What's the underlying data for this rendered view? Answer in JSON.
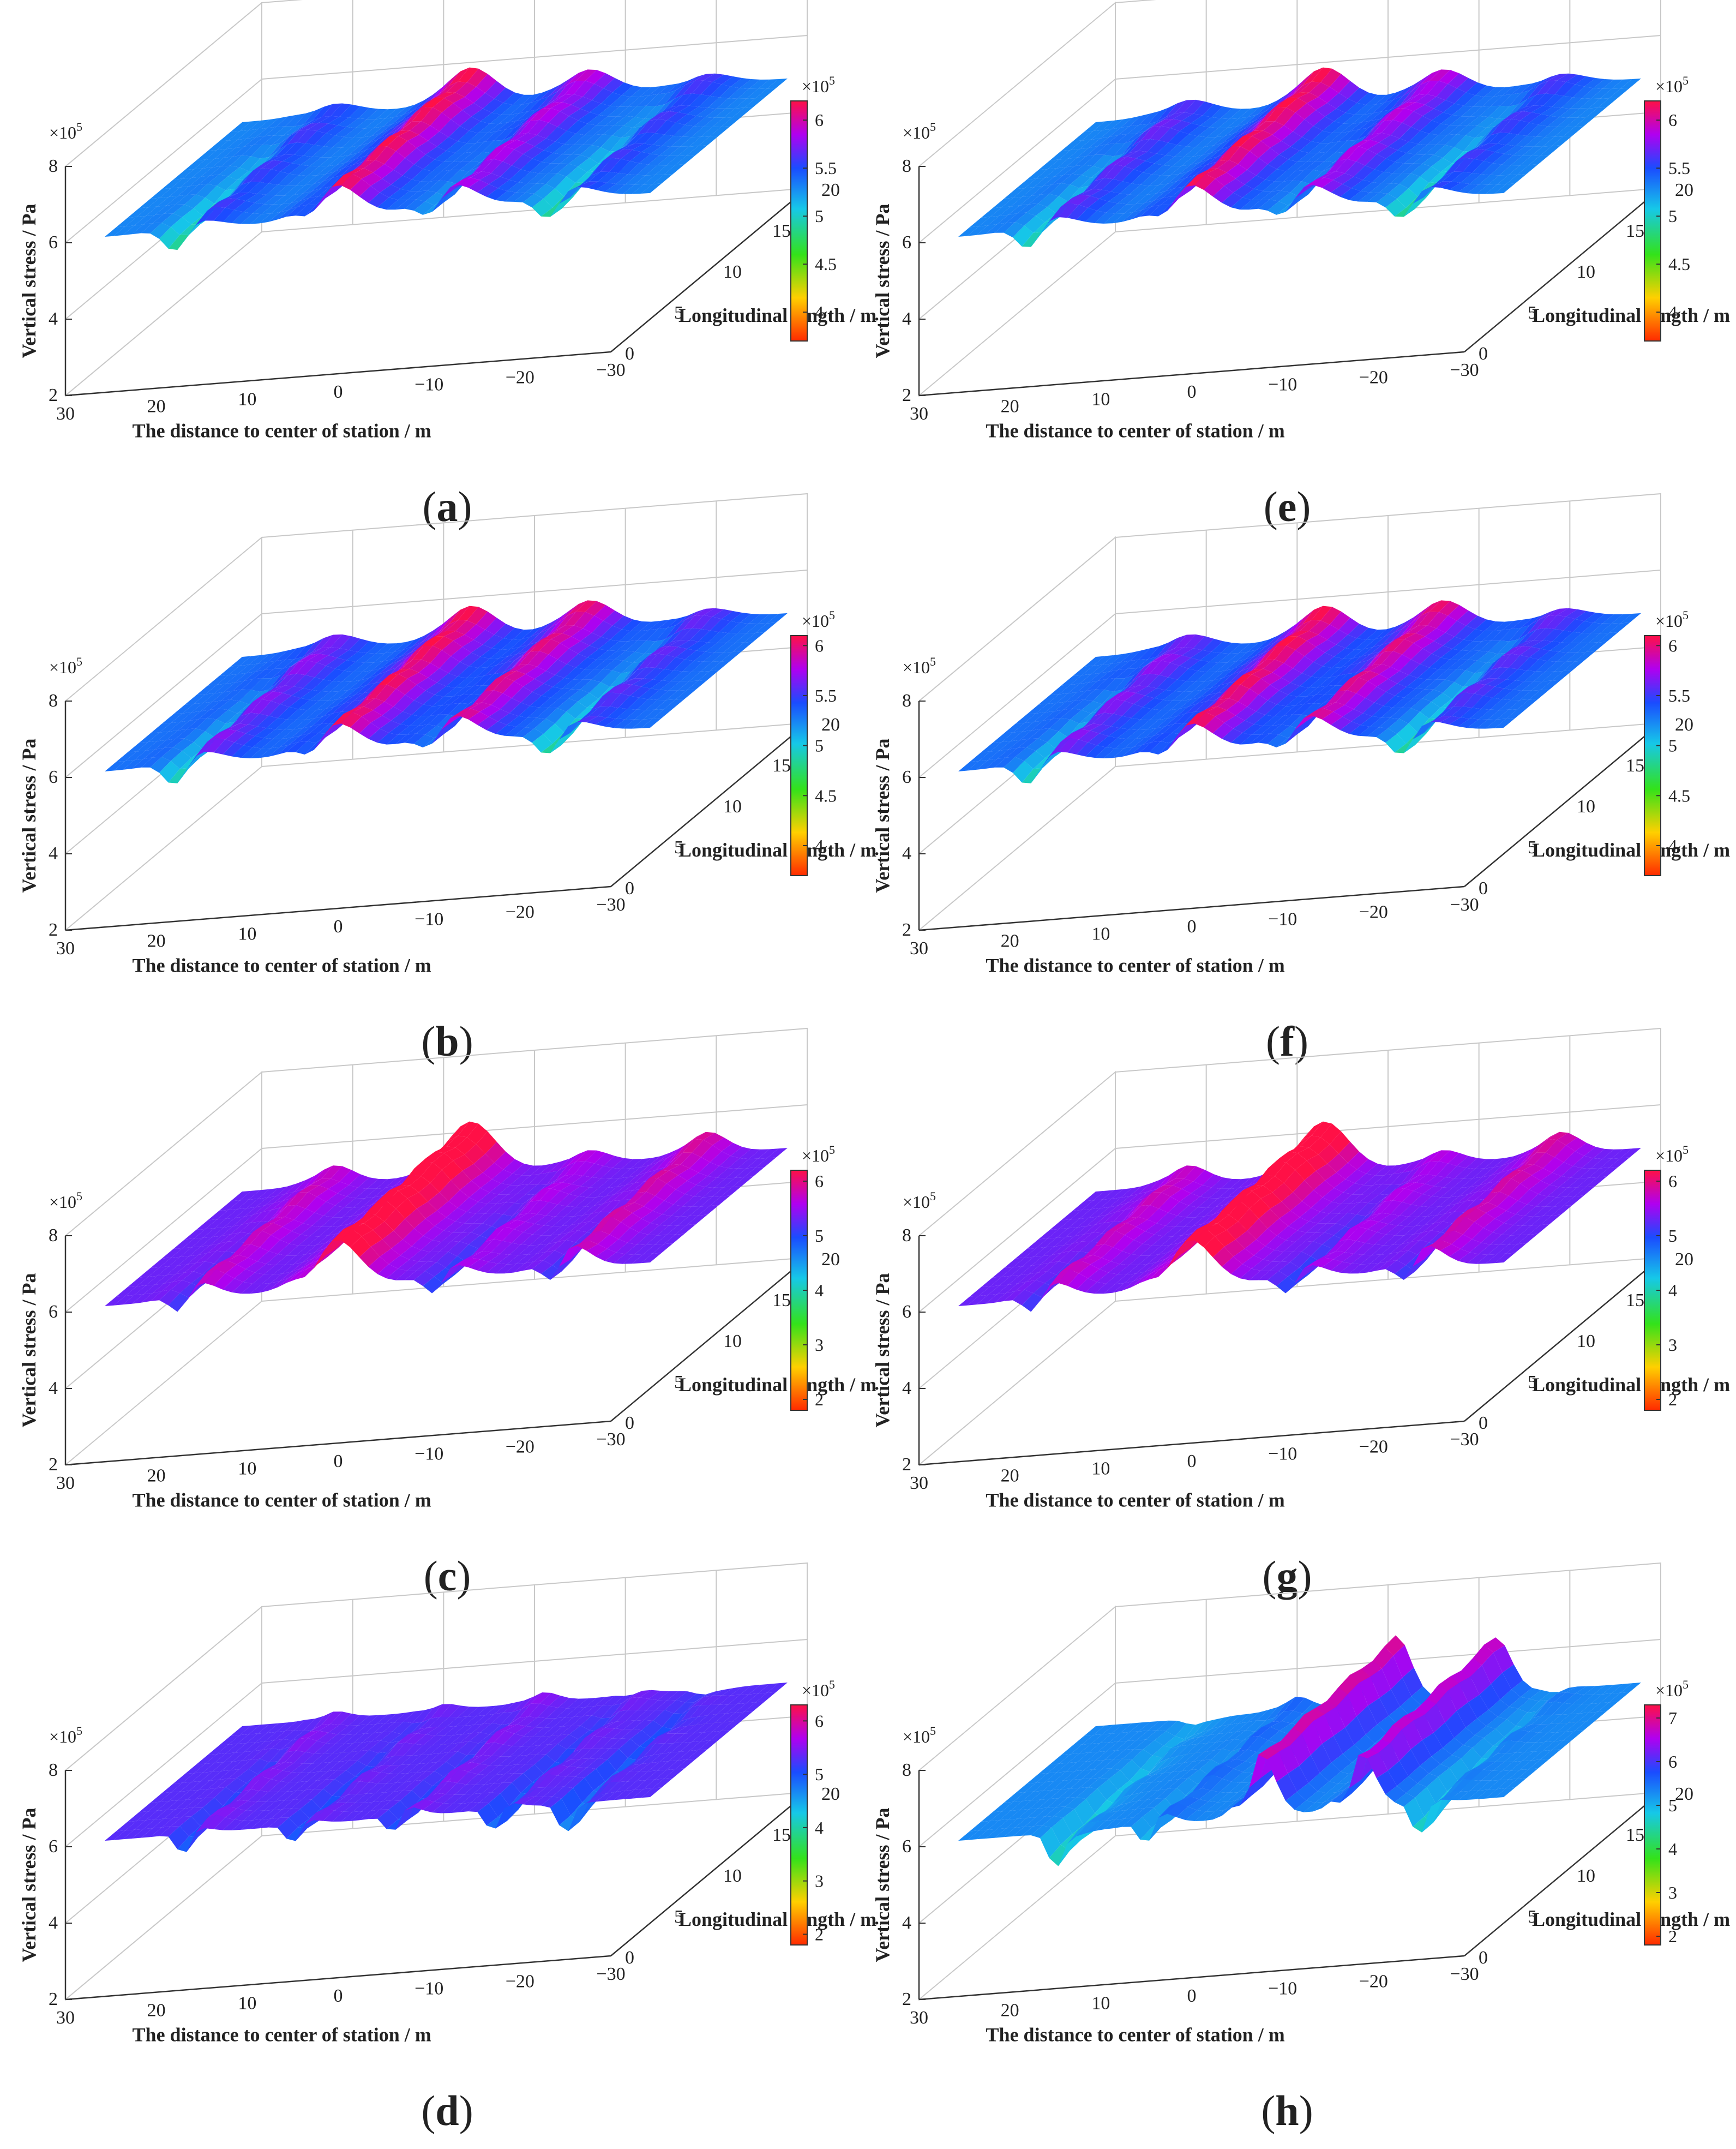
{
  "figure": {
    "panels": [
      {
        "id": "a",
        "caption": "(a)",
        "caption_letter": "a"
      },
      {
        "id": "b",
        "caption": "(b)",
        "caption_letter": "b"
      },
      {
        "id": "c",
        "caption": "(c)",
        "caption_letter": "c"
      },
      {
        "id": "d",
        "caption": "(d)",
        "caption_letter": "d"
      },
      {
        "id": "e",
        "caption": "(e)",
        "caption_letter": "e"
      },
      {
        "id": "f",
        "caption": "(f)",
        "caption_letter": "f"
      },
      {
        "id": "g",
        "caption": "(g)",
        "caption_letter": "g"
      },
      {
        "id": "h",
        "caption": "(h)",
        "caption_letter": "h"
      }
    ]
  },
  "chart_data": [
    {
      "panel": "a",
      "type": "surface",
      "zlabel": "Vertical stress / Pa",
      "xlabel": "The distance to center of station / m",
      "ylabel": "Longitudinal length / m",
      "zscale": "×10^5",
      "zticks": [
        "2",
        "4",
        "6",
        "8"
      ],
      "xticks": [
        "30",
        "20",
        "10",
        "0",
        "−10",
        "−20",
        "−30"
      ],
      "yticks": [
        "0",
        "5",
        "10",
        "15",
        "20"
      ],
      "colorbar": {
        "scale": "×10^5",
        "ticks": [
          "6",
          "5.5",
          "5",
          "4.5",
          "4"
        ],
        "range": [
          3.7,
          6.2
        ]
      },
      "profile": {
        "baseline": 5.3,
        "peaks": [
          {
            "x": 20,
            "min": 3.7,
            "max": 5.6,
            "width": 5
          },
          {
            "x": 5,
            "min": 4.2,
            "max": 6.2,
            "width": 5
          },
          {
            "x": -8,
            "min": 4.0,
            "max": 5.9,
            "width": 5
          },
          {
            "x": -21,
            "min": 3.7,
            "max": 5.6,
            "width": 5
          }
        ]
      }
    },
    {
      "panel": "b",
      "type": "surface",
      "zlabel": "Vertical stress / Pa",
      "xlabel": "The distance to center of station / m",
      "ylabel": "Longitudinal length / m",
      "zscale": "×10^5",
      "zticks": [
        "2",
        "4",
        "6",
        "8"
      ],
      "xticks": [
        "30",
        "20",
        "10",
        "0",
        "−10",
        "−20",
        "−30"
      ],
      "yticks": [
        "0",
        "5",
        "10",
        "15",
        "20"
      ],
      "colorbar": {
        "scale": "×10^5",
        "ticks": [
          "6",
          "5.5",
          "5",
          "4.5",
          "4"
        ],
        "range": [
          3.7,
          6.1
        ]
      },
      "profile": {
        "baseline": 5.3,
        "peaks": [
          {
            "x": 20,
            "min": 3.6,
            "max": 5.7,
            "width": 5
          },
          {
            "x": 5,
            "min": 4.1,
            "max": 6.1,
            "width": 5
          },
          {
            "x": -8,
            "min": 4.0,
            "max": 6.0,
            "width": 5
          },
          {
            "x": -21,
            "min": 3.6,
            "max": 5.6,
            "width": 5
          }
        ]
      }
    },
    {
      "panel": "c",
      "type": "surface",
      "zlabel": "Vertical stress / Pa",
      "xlabel": "The distance to center of station / m",
      "ylabel": "Longitudinal length / m",
      "zscale": "×10^5",
      "zticks": [
        "2",
        "4",
        "6",
        "8"
      ],
      "xticks": [
        "30",
        "20",
        "10",
        "0",
        "−10",
        "−20",
        "−30"
      ],
      "yticks": [
        "0",
        "5",
        "10",
        "15",
        "20"
      ],
      "colorbar": {
        "scale": "×10^5",
        "ticks": [
          "6",
          "5",
          "4",
          "3",
          "2"
        ],
        "range": [
          1.8,
          6.2
        ]
      },
      "profile": {
        "baseline": 5.3,
        "peaks": [
          {
            "x": 20,
            "min": 3.9,
            "max": 5.8,
            "width": 4
          },
          {
            "x": 5,
            "min": 4.2,
            "max": 6.6,
            "width": 5
          },
          {
            "x": -8,
            "min": 3.9,
            "max": 5.6,
            "width": 4
          },
          {
            "x": -21,
            "min": 3.7,
            "max": 5.9,
            "width": 4
          }
        ]
      }
    },
    {
      "panel": "d",
      "type": "surface",
      "zlabel": "Vertical stress / Pa",
      "xlabel": "The distance to center of station / m",
      "ylabel": "Longitudinal length / m",
      "zscale": "×10^5",
      "zticks": [
        "2",
        "4",
        "6",
        "8"
      ],
      "xticks": [
        "30",
        "20",
        "10",
        "0",
        "−10",
        "−20",
        "−30"
      ],
      "yticks": [
        "0",
        "5",
        "10",
        "15",
        "20"
      ],
      "colorbar": {
        "scale": "×10^5",
        "ticks": [
          "6",
          "5",
          "4",
          "3",
          "2"
        ],
        "range": [
          1.8,
          6.3
        ]
      },
      "profile": {
        "baseline": 5.3,
        "peaks": [
          {
            "x": 20,
            "min": 3.8,
            "max": 5.5,
            "width": 3
          },
          {
            "x": 8,
            "min": 4.0,
            "max": 5.4,
            "width": 3
          },
          {
            "x": -3,
            "min": 3.9,
            "max": 5.5,
            "width": 3
          },
          {
            "x": -14,
            "min": 3.7,
            "max": 5.4,
            "width": 3
          },
          {
            "x": -22,
            "min": 3.5,
            "max": 5.3,
            "width": 3
          }
        ]
      }
    },
    {
      "panel": "e",
      "type": "surface",
      "zlabel": "Vertical stress / Pa",
      "xlabel": "The distance to center of station / m",
      "ylabel": "Longitudinal length / m",
      "zscale": "×10^5",
      "zticks": [
        "2",
        "4",
        "6",
        "8"
      ],
      "xticks": [
        "30",
        "20",
        "10",
        "0",
        "−10",
        "−20",
        "−30"
      ],
      "yticks": [
        "0",
        "5",
        "10",
        "15",
        "20"
      ],
      "colorbar": {
        "scale": "×10^5",
        "ticks": [
          "6",
          "5.5",
          "5",
          "4.5",
          "4"
        ],
        "range": [
          3.7,
          6.2
        ]
      },
      "profile": {
        "baseline": 5.3,
        "peaks": [
          {
            "x": 20,
            "min": 3.7,
            "max": 5.7,
            "width": 5
          },
          {
            "x": 5,
            "min": 4.2,
            "max": 6.2,
            "width": 5
          },
          {
            "x": -8,
            "min": 4.0,
            "max": 5.9,
            "width": 5
          },
          {
            "x": -21,
            "min": 3.7,
            "max": 5.6,
            "width": 5
          }
        ]
      }
    },
    {
      "panel": "f",
      "type": "surface",
      "zlabel": "Vertical stress / Pa",
      "xlabel": "The distance to center of station / m",
      "ylabel": "Longitudinal length / m",
      "zscale": "×10^5",
      "zticks": [
        "2",
        "4",
        "6",
        "8"
      ],
      "xticks": [
        "30",
        "20",
        "10",
        "0",
        "−10",
        "−20",
        "−30"
      ],
      "yticks": [
        "0",
        "5",
        "10",
        "15",
        "20"
      ],
      "colorbar": {
        "scale": "×10^5",
        "ticks": [
          "6",
          "5.5",
          "5",
          "4.5",
          "4"
        ],
        "range": [
          3.7,
          6.1
        ]
      },
      "profile": {
        "baseline": 5.3,
        "peaks": [
          {
            "x": 20,
            "min": 3.6,
            "max": 5.7,
            "width": 5
          },
          {
            "x": 5,
            "min": 4.1,
            "max": 6.1,
            "width": 5
          },
          {
            "x": -8,
            "min": 4.0,
            "max": 6.0,
            "width": 5
          },
          {
            "x": -21,
            "min": 3.6,
            "max": 5.6,
            "width": 5
          }
        ]
      }
    },
    {
      "panel": "g",
      "type": "surface",
      "zlabel": "Vertical stress / Pa",
      "xlabel": "The distance to center of station / m",
      "ylabel": "Longitudinal length / m",
      "zscale": "×10^5",
      "zticks": [
        "2",
        "4",
        "6",
        "8"
      ],
      "xticks": [
        "30",
        "20",
        "10",
        "0",
        "−10",
        "−20",
        "−30"
      ],
      "yticks": [
        "0",
        "5",
        "10",
        "15",
        "20"
      ],
      "colorbar": {
        "scale": "×10^5",
        "ticks": [
          "6",
          "5",
          "4",
          "3",
          "2"
        ],
        "range": [
          1.8,
          6.2
        ]
      },
      "profile": {
        "baseline": 5.3,
        "peaks": [
          {
            "x": 20,
            "min": 3.9,
            "max": 5.8,
            "width": 4
          },
          {
            "x": 5,
            "min": 4.2,
            "max": 6.6,
            "width": 5
          },
          {
            "x": -8,
            "min": 3.9,
            "max": 5.6,
            "width": 4
          },
          {
            "x": -21,
            "min": 3.7,
            "max": 5.9,
            "width": 4
          }
        ]
      }
    },
    {
      "panel": "h",
      "type": "surface",
      "zlabel": "Vertical stress / Pa",
      "xlabel": "The distance to center of station / m",
      "ylabel": "Longitudinal length / m",
      "zscale": "×10^5",
      "zticks": [
        "2",
        "4",
        "6",
        "8"
      ],
      "xticks": [
        "30",
        "20",
        "10",
        "0",
        "−10",
        "−20",
        "−30"
      ],
      "yticks": [
        "0",
        "5",
        "10",
        "15",
        "20"
      ],
      "colorbar": {
        "scale": "×10^5",
        "ticks": [
          "7",
          "6",
          "5",
          "4",
          "3",
          "2"
        ],
        "range": [
          1.8,
          7.3
        ]
      },
      "profile": {
        "baseline": 5.3,
        "peaks": [
          {
            "x": 18,
            "min": 3.4,
            "max": 5.2,
            "width": 3
          },
          {
            "x": 8,
            "min": 3.6,
            "max": 5.6,
            "width": 3
          },
          {
            "x": -3,
            "min": 3.5,
            "max": 7.0,
            "width": 3
          },
          {
            "x": -14,
            "min": 3.4,
            "max": 6.8,
            "width": 3
          },
          {
            "x": -22,
            "min": 3.2,
            "max": 5.4,
            "width": 3
          }
        ]
      }
    }
  ]
}
